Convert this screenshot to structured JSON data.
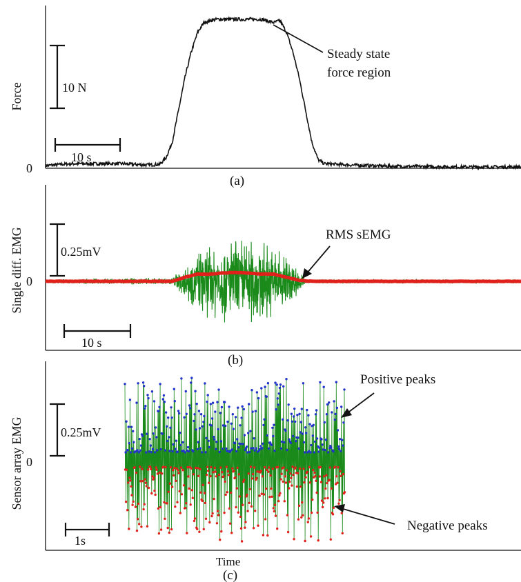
{
  "chart_data": [
    {
      "panel": "a",
      "type": "line",
      "caption": "(a)",
      "ylabel": "Force",
      "y_zero_label": "0",
      "scalebar_y_label": "10 N",
      "scalebar_y_value": 10,
      "scalebar_x_label": "10 s",
      "scalebar_x_value": 10,
      "annotation": [
        "Steady state",
        "force region"
      ],
      "xlim": [
        0,
        75
      ],
      "ylim": [
        0,
        23
      ],
      "series": [
        {
          "color": "#000000",
          "x": [
            0,
            4,
            8,
            12,
            16,
            18,
            19,
            20,
            21,
            22,
            23,
            24,
            25,
            26,
            27,
            28,
            32,
            34,
            36,
            37,
            38,
            39,
            40,
            41,
            42,
            43,
            44,
            48,
            55,
            65,
            75
          ],
          "y": [
            0.3,
            0.6,
            0.6,
            0.6,
            0.4,
            0.5,
            1.5,
            4,
            9,
            14,
            18,
            21,
            22.5,
            22.8,
            23,
            23,
            23,
            23,
            22.5,
            22.8,
            21,
            18,
            14,
            9,
            4,
            1.2,
            0.6,
            0.4,
            0.2,
            0.1,
            0.1
          ]
        }
      ]
    },
    {
      "panel": "b",
      "type": "line",
      "caption": "(b)",
      "ylabel": "Single diff. EMG",
      "y_zero_label": "0",
      "scalebar_y_label": "0.25mV",
      "scalebar_y_value": 0.25,
      "scalebar_x_label": "10 s",
      "scalebar_x_value": 10,
      "annotation": [
        "RMS sEMG"
      ],
      "ylim": [
        -0.3,
        0.35
      ],
      "series": [
        {
          "color": "#1a8a1a",
          "x": [
            0,
            20,
            23,
            26,
            29,
            32,
            35,
            38,
            40,
            41,
            75
          ],
          "y_envelope": [
            0.01,
            0.02,
            0.13,
            0.2,
            0.22,
            0.24,
            0.2,
            0.16,
            0.06,
            0.01,
            0.01
          ]
        },
        {
          "color": "#e0201a",
          "x": [
            0,
            20,
            22,
            24,
            26,
            28,
            30,
            32,
            34,
            36,
            38,
            40,
            42,
            75
          ],
          "y": [
            0,
            0,
            0.02,
            0.035,
            0.035,
            0.04,
            0.043,
            0.04,
            0.035,
            0.035,
            0.02,
            0.005,
            0,
            0
          ]
        }
      ]
    },
    {
      "panel": "c",
      "type": "scatter",
      "caption": "(c)",
      "xlabel": "Time",
      "ylabel": "Sensor array EMG",
      "y_zero_label": "0",
      "scalebar_y_label": "0.25mV",
      "scalebar_y_value": 0.25,
      "scalebar_x_label": "1s",
      "scalebar_x_value": 1,
      "annotations": [
        "Positive peaks",
        "Negative peaks"
      ],
      "ylim": [
        -0.35,
        0.37
      ],
      "series": [
        {
          "color": "#1a8a1a",
          "note": "raw EMG signal"
        },
        {
          "color": "#2233cc",
          "note": "positive peak markers"
        },
        {
          "color": "#e0201a",
          "note": "negative peak markers"
        }
      ]
    }
  ]
}
